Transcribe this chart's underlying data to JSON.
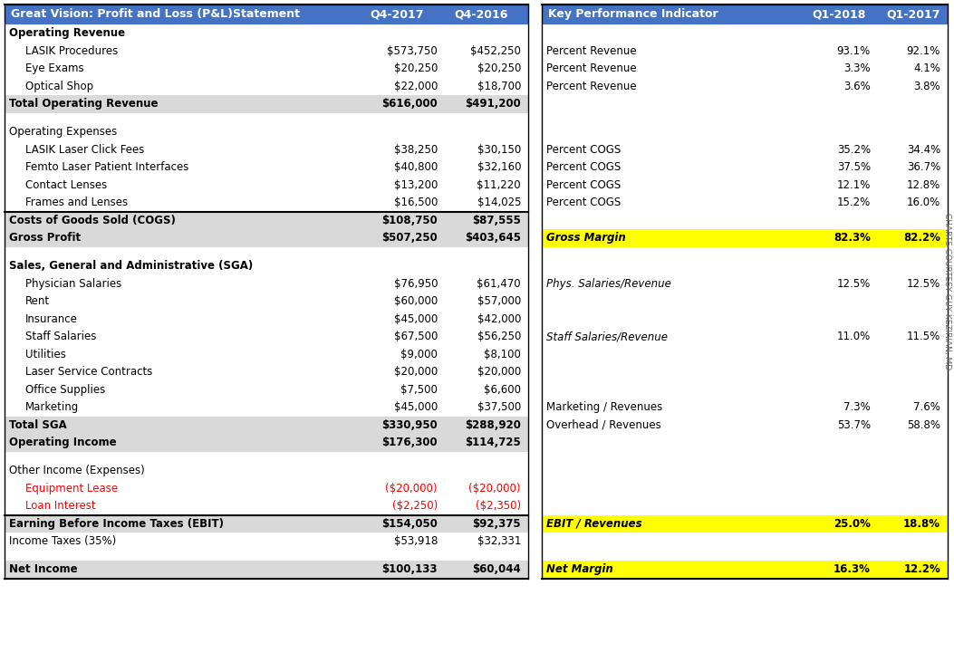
{
  "header_bg": "#4472C4",
  "header_text": "#FFFFFF",
  "subheader_bg": "#D9D9D9",
  "white_bg": "#FFFFFF",
  "yellow_bg": "#FFFF00",
  "red_text": "#FF0000",
  "black_text": "#000000",
  "left_header": [
    "Great Vision: Profit and Loss (P&L)Statement",
    "Q4-2017",
    "Q4-2016"
  ],
  "right_header": [
    "Key Performance Indicator",
    "Q1-2018",
    "Q1-2017"
  ],
  "rows": [
    {
      "left": {
        "label": "Operating Revenue",
        "v1": "",
        "v2": "",
        "style": "section_header",
        "indent": false
      },
      "right": {
        "label": "",
        "v1": "",
        "v2": "",
        "style": "empty"
      }
    },
    {
      "left": {
        "label": "LASIK Procedures",
        "v1": "$573,750",
        "v2": "$452,250",
        "style": "normal",
        "indent": true
      },
      "right": {
        "label": "Percent Revenue",
        "v1": "93.1%",
        "v2": "92.1%",
        "style": "normal"
      }
    },
    {
      "left": {
        "label": "Eye Exams",
        "v1": "$20,250",
        "v2": "$20,250",
        "style": "normal",
        "indent": true
      },
      "right": {
        "label": "Percent Revenue",
        "v1": "3.3%",
        "v2": "4.1%",
        "style": "normal"
      }
    },
    {
      "left": {
        "label": "Optical Shop",
        "v1": "$22,000",
        "v2": "$18,700",
        "style": "normal",
        "indent": true
      },
      "right": {
        "label": "Percent Revenue",
        "v1": "3.6%",
        "v2": "3.8%",
        "style": "normal"
      }
    },
    {
      "left": {
        "label": "Total Operating Revenue",
        "v1": "$616,000",
        "v2": "$491,200",
        "style": "total",
        "indent": false
      },
      "right": {
        "label": "",
        "v1": "",
        "v2": "",
        "style": "empty"
      }
    },
    {
      "left": {
        "label": "",
        "v1": "",
        "v2": "",
        "style": "spacer",
        "indent": false
      },
      "right": {
        "label": "",
        "v1": "",
        "v2": "",
        "style": "spacer"
      }
    },
    {
      "left": {
        "label": "Operating Expenses",
        "v1": "",
        "v2": "",
        "style": "section_header_light",
        "indent": false
      },
      "right": {
        "label": "",
        "v1": "",
        "v2": "",
        "style": "empty"
      }
    },
    {
      "left": {
        "label": "LASIK Laser Click Fees",
        "v1": "$38,250",
        "v2": "$30,150",
        "style": "normal",
        "indent": true
      },
      "right": {
        "label": "Percent COGS",
        "v1": "35.2%",
        "v2": "34.4%",
        "style": "normal"
      }
    },
    {
      "left": {
        "label": "Femto Laser Patient Interfaces",
        "v1": "$40,800",
        "v2": "$32,160",
        "style": "normal",
        "indent": true
      },
      "right": {
        "label": "Percent COGS",
        "v1": "37.5%",
        "v2": "36.7%",
        "style": "normal"
      }
    },
    {
      "left": {
        "label": "Contact Lenses",
        "v1": "$13,200",
        "v2": "$11,220",
        "style": "normal",
        "indent": true
      },
      "right": {
        "label": "Percent COGS",
        "v1": "12.1%",
        "v2": "12.8%",
        "style": "normal"
      }
    },
    {
      "left": {
        "label": "Frames and Lenses",
        "v1": "$16,500",
        "v2": "$14,025",
        "style": "normal",
        "indent": true
      },
      "right": {
        "label": "Percent COGS",
        "v1": "15.2%",
        "v2": "16.0%",
        "style": "normal"
      }
    },
    {
      "left": {
        "label": "Costs of Goods Sold (COGS)",
        "v1": "$108,750",
        "v2": "$87,555",
        "style": "total_border",
        "indent": false
      },
      "right": {
        "label": "",
        "v1": "",
        "v2": "",
        "style": "empty"
      }
    },
    {
      "left": {
        "label": "Gross Profit",
        "v1": "$507,250",
        "v2": "$403,645",
        "style": "total",
        "indent": false
      },
      "right": {
        "label": "Gross Margin",
        "v1": "82.3%",
        "v2": "82.2%",
        "style": "yellow"
      }
    },
    {
      "left": {
        "label": "",
        "v1": "",
        "v2": "",
        "style": "spacer",
        "indent": false
      },
      "right": {
        "label": "",
        "v1": "",
        "v2": "",
        "style": "spacer"
      }
    },
    {
      "left": {
        "label": "Sales, General and Administrative (SGA)",
        "v1": "",
        "v2": "",
        "style": "section_header",
        "indent": false
      },
      "right": {
        "label": "",
        "v1": "",
        "v2": "",
        "style": "empty"
      }
    },
    {
      "left": {
        "label": "Physician Salaries",
        "v1": "$76,950",
        "v2": "$61,470",
        "style": "normal",
        "indent": true
      },
      "right": {
        "label": "Phys. Salaries/Revenue",
        "v1": "12.5%",
        "v2": "12.5%",
        "style": "italic_normal"
      }
    },
    {
      "left": {
        "label": "Rent",
        "v1": "$60,000",
        "v2": "$57,000",
        "style": "normal",
        "indent": true
      },
      "right": {
        "label": "",
        "v1": "",
        "v2": "",
        "style": "empty"
      }
    },
    {
      "left": {
        "label": "Insurance",
        "v1": "$45,000",
        "v2": "$42,000",
        "style": "normal",
        "indent": true
      },
      "right": {
        "label": "",
        "v1": "",
        "v2": "",
        "style": "empty"
      }
    },
    {
      "left": {
        "label": "Staff Salaries",
        "v1": "$67,500",
        "v2": "$56,250",
        "style": "normal",
        "indent": true
      },
      "right": {
        "label": "Staff Salaries/Revenue",
        "v1": "11.0%",
        "v2": "11.5%",
        "style": "italic_normal"
      }
    },
    {
      "left": {
        "label": "Utilities",
        "v1": "$9,000",
        "v2": "$8,100",
        "style": "normal",
        "indent": true
      },
      "right": {
        "label": "",
        "v1": "",
        "v2": "",
        "style": "empty"
      }
    },
    {
      "left": {
        "label": "Laser Service Contracts",
        "v1": "$20,000",
        "v2": "$20,000",
        "style": "normal",
        "indent": true
      },
      "right": {
        "label": "",
        "v1": "",
        "v2": "",
        "style": "empty"
      }
    },
    {
      "left": {
        "label": "Office Supplies",
        "v1": "$7,500",
        "v2": "$6,600",
        "style": "normal",
        "indent": true
      },
      "right": {
        "label": "",
        "v1": "",
        "v2": "",
        "style": "empty"
      }
    },
    {
      "left": {
        "label": "Marketing",
        "v1": "$45,000",
        "v2": "$37,500",
        "style": "normal",
        "indent": true
      },
      "right": {
        "label": "Marketing / Revenues",
        "v1": "7.3%",
        "v2": "7.6%",
        "style": "normal"
      }
    },
    {
      "left": {
        "label": "Total SGA",
        "v1": "$330,950",
        "v2": "$288,920",
        "style": "total",
        "indent": false
      },
      "right": {
        "label": "Overhead / Revenues",
        "v1": "53.7%",
        "v2": "58.8%",
        "style": "normal"
      }
    },
    {
      "left": {
        "label": "Operating Income",
        "v1": "$176,300",
        "v2": "$114,725",
        "style": "total",
        "indent": false
      },
      "right": {
        "label": "",
        "v1": "",
        "v2": "",
        "style": "empty"
      }
    },
    {
      "left": {
        "label": "",
        "v1": "",
        "v2": "",
        "style": "spacer",
        "indent": false
      },
      "right": {
        "label": "",
        "v1": "",
        "v2": "",
        "style": "spacer"
      }
    },
    {
      "left": {
        "label": "Other Income (Expenses)",
        "v1": "",
        "v2": "",
        "style": "section_header_light",
        "indent": false
      },
      "right": {
        "label": "",
        "v1": "",
        "v2": "",
        "style": "empty"
      }
    },
    {
      "left": {
        "label": "Equipment Lease",
        "v1": "($20,000)",
        "v2": "($20,000)",
        "style": "red",
        "indent": true
      },
      "right": {
        "label": "",
        "v1": "",
        "v2": "",
        "style": "empty"
      }
    },
    {
      "left": {
        "label": "Loan Interest",
        "v1": "($2,250)",
        "v2": "($2,350)",
        "style": "red",
        "indent": true
      },
      "right": {
        "label": "",
        "v1": "",
        "v2": "",
        "style": "empty"
      }
    },
    {
      "left": {
        "label": "Earning Before Income Taxes (EBIT)",
        "v1": "$154,050",
        "v2": "$92,375",
        "style": "total_border",
        "indent": false
      },
      "right": {
        "label": "EBIT / Revenues",
        "v1": "25.0%",
        "v2": "18.8%",
        "style": "yellow"
      }
    },
    {
      "left": {
        "label": "Income Taxes (35%)",
        "v1": "$53,918",
        "v2": "$32,331",
        "style": "normal",
        "indent": false
      },
      "right": {
        "label": "",
        "v1": "",
        "v2": "",
        "style": "empty"
      }
    },
    {
      "left": {
        "label": "",
        "v1": "",
        "v2": "",
        "style": "spacer",
        "indent": false
      },
      "right": {
        "label": "",
        "v1": "",
        "v2": "",
        "style": "spacer"
      }
    },
    {
      "left": {
        "label": "Net Income",
        "v1": "$100,133",
        "v2": "$60,044",
        "style": "total",
        "indent": false
      },
      "right": {
        "label": "Net Margin",
        "v1": "16.3%",
        "v2": "12.2%",
        "style": "yellow"
      }
    }
  ],
  "watermark": "CHARTS COURTESY GUY KEZIRIAN, MD"
}
